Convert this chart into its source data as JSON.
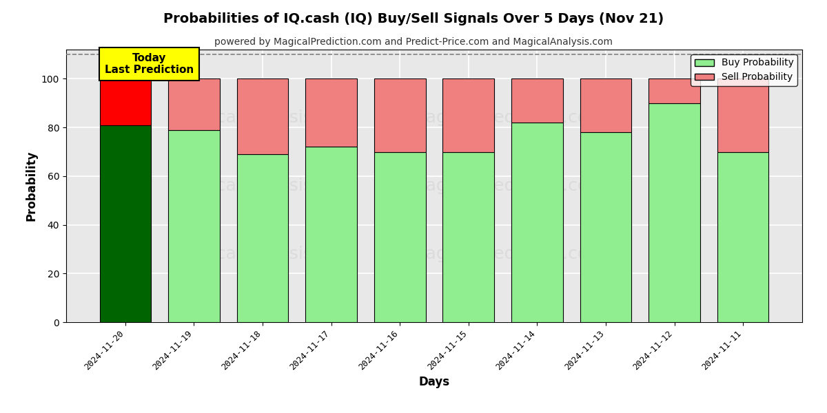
{
  "title": "Probabilities of IQ.cash (IQ) Buy/Sell Signals Over 5 Days (Nov 21)",
  "subtitle": "powered by MagicalPrediction.com and Predict-Price.com and MagicalAnalysis.com",
  "xlabel": "Days",
  "ylabel": "Probability",
  "categories": [
    "2024-11-20",
    "2024-11-19",
    "2024-11-18",
    "2024-11-17",
    "2024-11-16",
    "2024-11-15",
    "2024-11-14",
    "2024-11-13",
    "2024-11-12",
    "2024-11-11"
  ],
  "buy_values": [
    81,
    79,
    69,
    72,
    70,
    70,
    82,
    78,
    90,
    70
  ],
  "sell_values": [
    19,
    21,
    31,
    28,
    30,
    30,
    18,
    22,
    10,
    30
  ],
  "today_buy_color": "#006400",
  "today_sell_color": "#FF0000",
  "other_buy_color": "#90EE90",
  "other_sell_color": "#F08080",
  "today_label_bg": "#FFFF00",
  "today_label_text": "Today\nLast Prediction",
  "legend_buy_label": "Buy Probability",
  "legend_sell_label": "Sell Probability",
  "ylim_max": 112,
  "yticks": [
    0,
    20,
    40,
    60,
    80,
    100
  ],
  "dashed_line_y": 110,
  "bar_edgecolor": "#000000",
  "bar_linewidth": 0.8,
  "grid_color": "#ffffff",
  "plot_bg_color": "#e8e8e8",
  "title_fontsize": 14,
  "subtitle_fontsize": 10,
  "label_fontsize": 12,
  "tick_fontsize": 9
}
